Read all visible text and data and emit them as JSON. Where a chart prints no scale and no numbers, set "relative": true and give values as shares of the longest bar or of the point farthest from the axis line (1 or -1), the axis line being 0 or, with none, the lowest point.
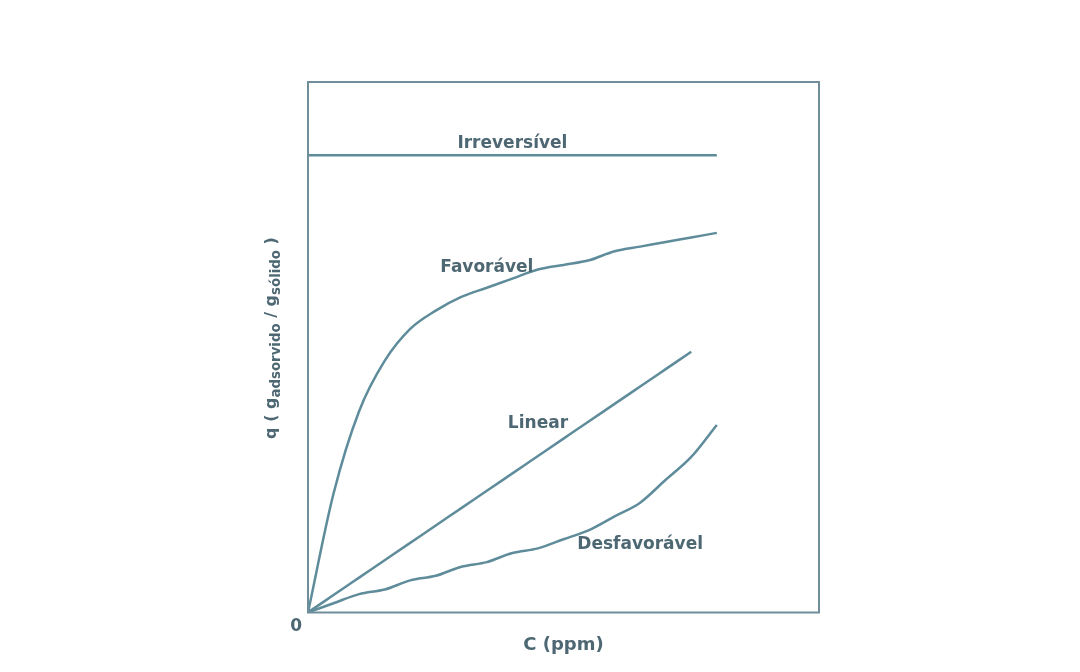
{
  "chart_data": {
    "type": "line",
    "relative": true,
    "xlabel": "C (ppm)",
    "ylabel": "q ( g$_{adsorvido}$ / g$_{sólido}$ )",
    "annotations": [
      "0"
    ],
    "legend": false,
    "marker": "none",
    "categories": [
      null,
      null,
      null,
      null,
      null,
      null,
      null,
      null,
      null,
      null,
      null,
      null,
      null,
      null,
      null,
      null,
      null,
      null,
      null,
      null,
      null
    ],
    "series": [
      {
        "name": "Irreversível",
        "color": "#5f8c9b",
        "values": [
          1,
          1,
          1,
          1,
          1,
          1,
          1,
          1,
          1,
          1,
          1,
          1,
          1,
          1,
          1,
          1,
          1,
          null,
          null,
          null,
          null
        ]
      },
      {
        "name": "Favorável",
        "color": "#5f8c9b",
        "values": [
          0,
          0.26,
          0.44,
          0.55,
          0.62,
          0.66,
          0.69,
          0.71,
          0.73,
          0.75,
          0.76,
          0.77,
          0.79,
          0.8,
          0.81,
          0.82,
          0.83,
          null,
          null,
          null,
          null
        ]
      },
      {
        "name": "Linear",
        "color": "#5f8c9b",
        "values": [
          0,
          0.038,
          0.076,
          0.114,
          0.152,
          0.19,
          0.228,
          0.266,
          0.304,
          0.342,
          0.38,
          0.418,
          0.456,
          0.494,
          0.532,
          0.57,
          null,
          null,
          null,
          null,
          null
        ]
      },
      {
        "name": "Desfavorável",
        "color": "#5f8c9b",
        "values": [
          0,
          0.02,
          0.04,
          0.05,
          0.07,
          0.08,
          0.1,
          0.11,
          0.13,
          0.14,
          0.16,
          0.18,
          0.21,
          0.24,
          0.29,
          0.34,
          0.41,
          null,
          null,
          null,
          null
        ]
      }
    ]
  }
}
